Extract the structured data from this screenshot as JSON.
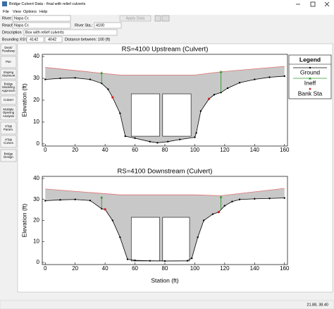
{
  "window": {
    "title": "Bridge Culvert Data - final with relief culverts",
    "menu": [
      "File",
      "View",
      "Options",
      "Help"
    ]
  },
  "form": {
    "river_label": "River:",
    "river": "Napa Cr.",
    "apply_button": "Apply Data",
    "reach_label": "Reach:",
    "reach": "Napa Cr.",
    "river_sta_label": "River Sta.:",
    "river_sta": "4100",
    "description_label": "Description",
    "description": "Box with relief culverts",
    "bounding_label": "Bounding XS's:",
    "bounding_us": "4142",
    "bounding_ds": "4042",
    "distance_label": "Distance between: 100 (ft)"
  },
  "toolbar": [
    [
      "Deck/",
      "Roadway"
    ],
    [
      "Pier"
    ],
    [
      "Sloping",
      "Abutment"
    ],
    [
      "Bridge",
      "Modeling",
      "Approach"
    ],
    [
      "Culvert"
    ],
    [
      "Multiple",
      "Opening",
      "Analysis"
    ],
    [
      "HTab",
      "Param."
    ],
    [
      "HTab",
      "Curves"
    ],
    [
      "Bridge",
      "Design"
    ]
  ],
  "status_bar": "21.88, 38.40",
  "chart_data": [
    {
      "type": "cross-section",
      "title": "RS=4100   Upstream (Culvert)",
      "ylabel": "Elevation (ft)",
      "xlim": [
        -2,
        162
      ],
      "ylim": [
        -1,
        41
      ],
      "xticks": [
        0,
        20,
        40,
        60,
        80,
        100,
        120,
        140,
        160
      ],
      "yticks": [
        0,
        10,
        20,
        30,
        40
      ],
      "fill_color": "#c8c8c8",
      "legend": {
        "title": "Legend",
        "position": "right"
      },
      "ground": {
        "name": "Ground",
        "color": "#000000",
        "x": [
          0,
          10,
          20,
          30,
          37.7,
          42,
          45,
          50,
          53.5,
          60,
          70,
          75,
          82,
          90,
          100,
          101,
          104,
          109.5,
          113,
          117.5,
          122,
          130,
          140,
          150,
          160
        ],
        "values": [
          29.5,
          30,
          30.2,
          29.5,
          27.7,
          25,
          21.3,
          14,
          3.5,
          2.6,
          1,
          0.5,
          1,
          2,
          3,
          5,
          15,
          20.6,
          22.5,
          23.5,
          25.5,
          28,
          29.5,
          30.5,
          31
        ]
      },
      "road": {
        "color": "#e07070",
        "x": [
          0,
          50,
          100,
          117.5,
          160
        ],
        "values": [
          35,
          31.5,
          31.5,
          33,
          35.5
        ]
      },
      "ineff": {
        "name": "Ineff",
        "color": "#2e9a2e",
        "x": [
          37.7,
          117.5
        ],
        "values": [
          32.5,
          33
        ]
      },
      "bank_sta": {
        "name": "Bank Sta",
        "color": "#d02020",
        "x": [
          45,
          109.5
        ],
        "values": [
          21.3,
          20.6
        ]
      },
      "culverts": [
        {
          "x": [
            57.5,
            76.5
          ],
          "values": [
            3.5,
            22.9
          ]
        },
        {
          "x": [
            78.5,
            97.5
          ],
          "values": [
            3.5,
            22.9
          ]
        }
      ]
    },
    {
      "type": "cross-section",
      "title": "RS=4100   Downstream (Culvert)",
      "ylabel": "Elevation (ft)",
      "xlabel": "Station (ft)",
      "xlim": [
        -2,
        162
      ],
      "ylim": [
        -1,
        41
      ],
      "xticks": [
        0,
        20,
        40,
        60,
        80,
        100,
        120,
        140,
        160
      ],
      "yticks": [
        0,
        10,
        20,
        30,
        40
      ],
      "fill_color": "#c8c8c8",
      "ground": {
        "color": "#000000",
        "x": [
          0,
          10,
          20,
          30,
          37.7,
          40,
          45,
          50,
          55,
          60,
          70,
          80,
          95,
          98,
          102,
          106,
          112,
          116,
          120,
          125,
          130,
          140,
          150,
          160
        ],
        "values": [
          29.4,
          29.8,
          30,
          29.5,
          25.6,
          25.3,
          20,
          12,
          1.5,
          1,
          0.8,
          0.7,
          0.8,
          2,
          12,
          20,
          23,
          24,
          27,
          29,
          30,
          30.3,
          30.5,
          30.7
        ]
      },
      "road": {
        "color": "#e07070",
        "x": [
          0,
          50,
          100,
          117.5,
          160
        ],
        "values": [
          35,
          32.2,
          32.2,
          31.8,
          35.3
        ]
      },
      "ineff": {
        "color": "#2e9a2e",
        "x": [
          37.7,
          117.5
        ],
        "values": [
          31,
          31.2
        ]
      },
      "bank_sta": {
        "color": "#d02020",
        "x": [
          40,
          116
        ],
        "values": [
          25.3,
          24
        ]
      },
      "culverts": [
        {
          "x": [
            57.5,
            76.5
          ],
          "values": [
            0.7,
            21.5
          ]
        },
        {
          "x": [
            78.5,
            96.5
          ],
          "values": [
            0.7,
            21.5
          ]
        }
      ]
    }
  ]
}
